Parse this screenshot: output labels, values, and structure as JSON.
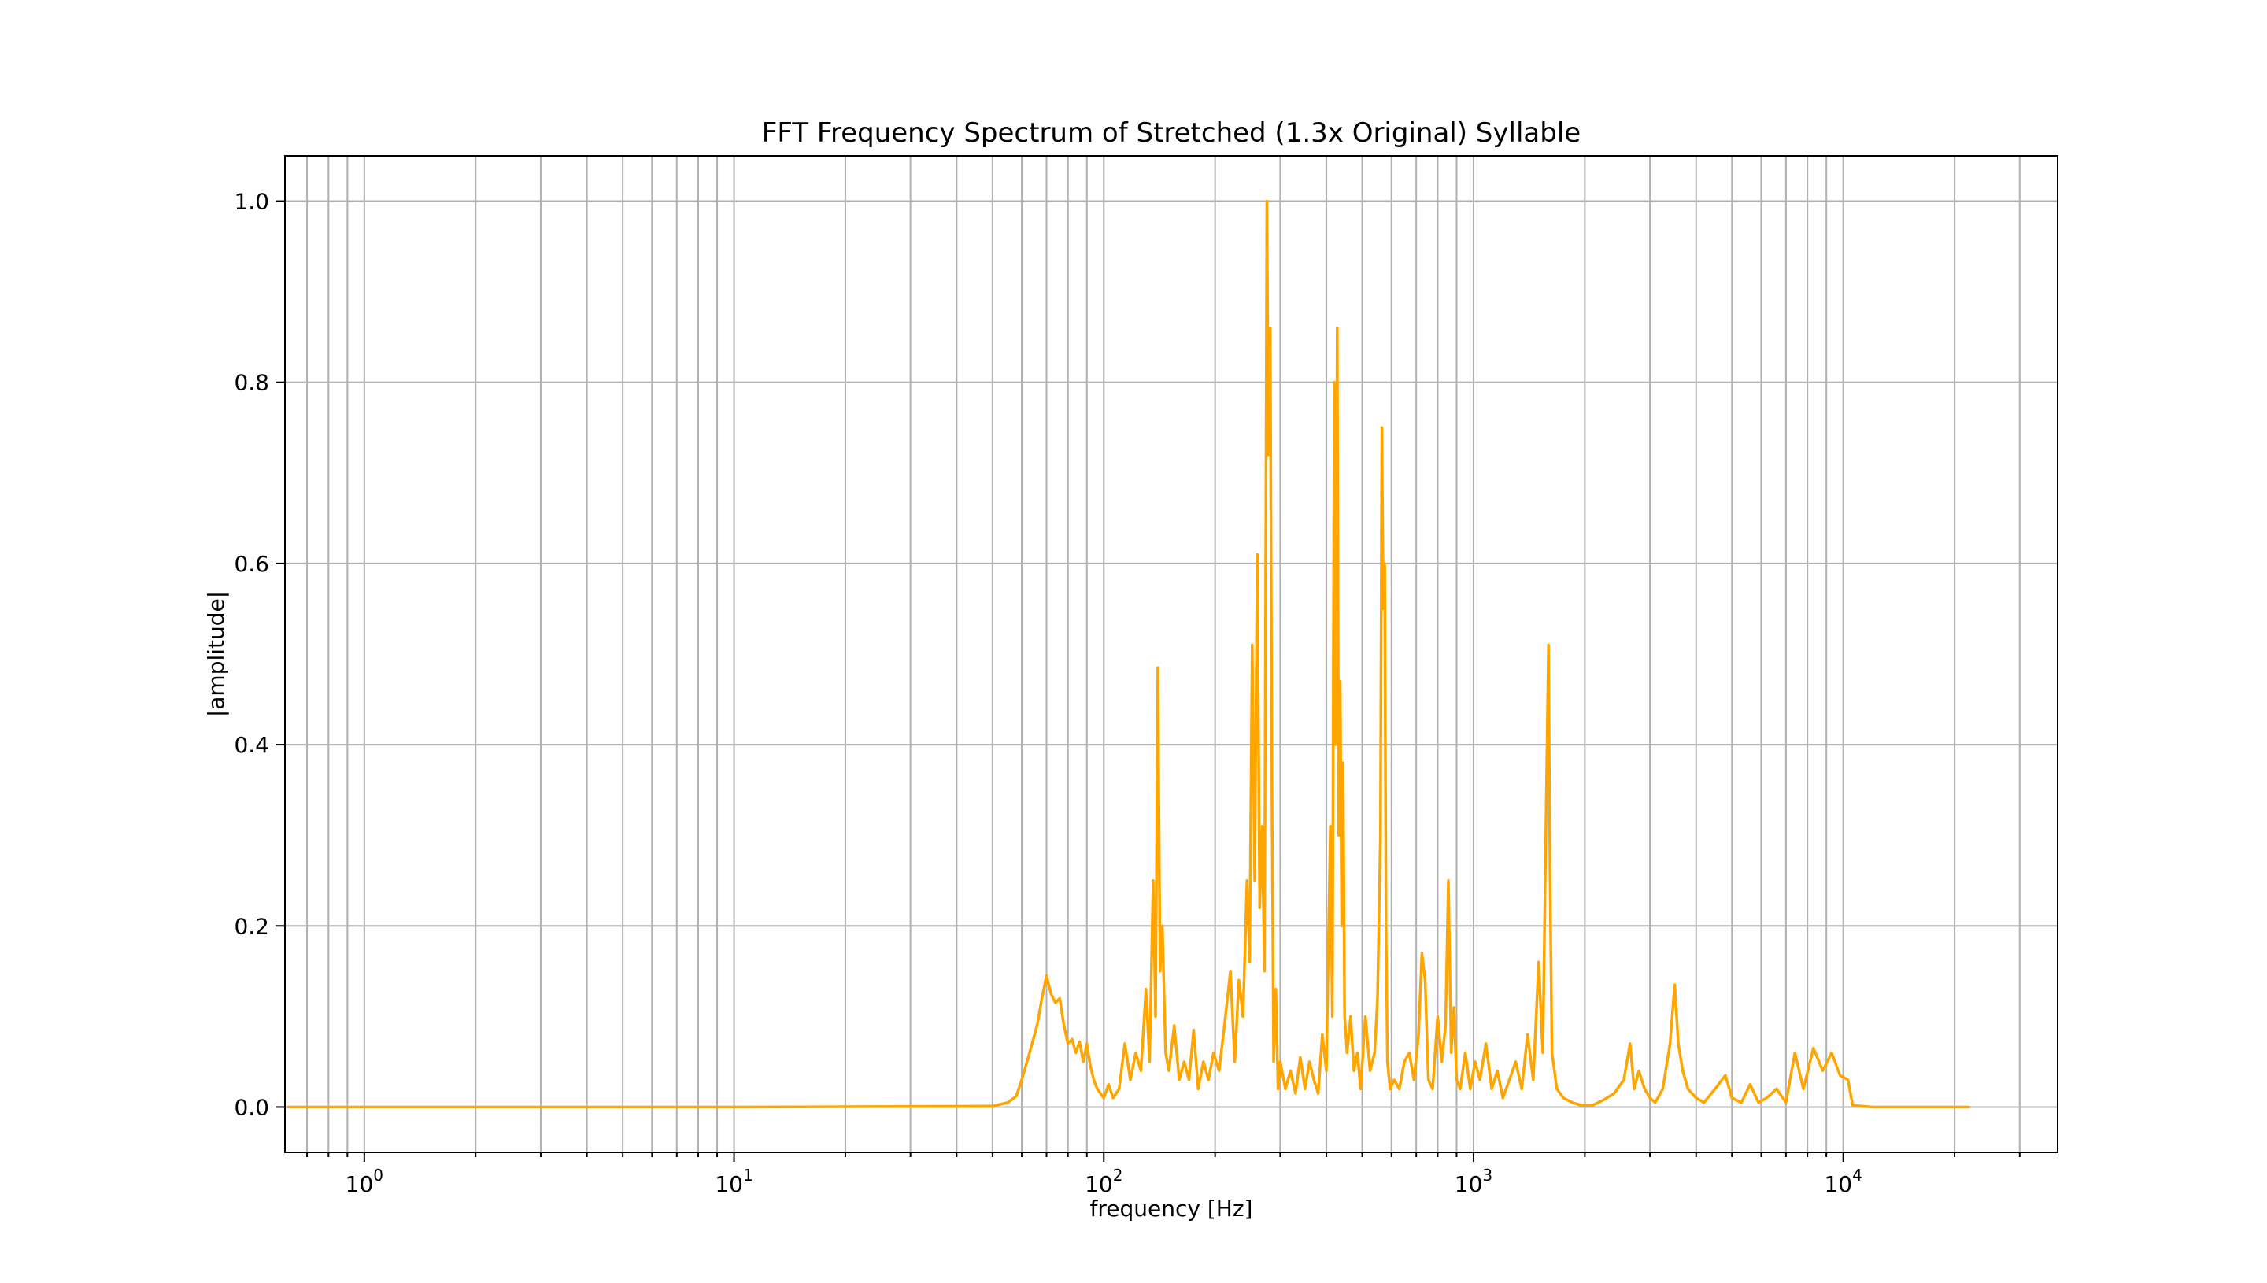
{
  "chart_data": {
    "type": "line",
    "title": "FFT Frequency Spectrum of Stretched (1.3x Original) Syllable",
    "xlabel": "frequency [Hz]",
    "ylabel": "|amplitude|",
    "xscale": "log",
    "xlim": [
      0.61,
      38000
    ],
    "ylim": [
      -0.05,
      1.05
    ],
    "grid": true,
    "grid_minor_x": true,
    "line_color": "#FFA500",
    "x_ticks": [
      {
        "base": "10",
        "exp": "0",
        "value": 1
      },
      {
        "base": "10",
        "exp": "1",
        "value": 10
      },
      {
        "base": "10",
        "exp": "2",
        "value": 100
      },
      {
        "base": "10",
        "exp": "3",
        "value": 1000
      },
      {
        "base": "10",
        "exp": "4",
        "value": 10000
      }
    ],
    "y_ticks": [
      "0.0",
      "0.2",
      "0.4",
      "0.6",
      "0.8",
      "1.0"
    ],
    "series": [
      {
        "points": [
          [
            0.62,
            0.0
          ],
          [
            10,
            0.0
          ],
          [
            50,
            0.001
          ],
          [
            55,
            0.005
          ],
          [
            58,
            0.012
          ],
          [
            60,
            0.03
          ],
          [
            63,
            0.06
          ],
          [
            66,
            0.09
          ],
          [
            68,
            0.12
          ],
          [
            70,
            0.145
          ],
          [
            72,
            0.125
          ],
          [
            74,
            0.115
          ],
          [
            76,
            0.12
          ],
          [
            78,
            0.09
          ],
          [
            80,
            0.07
          ],
          [
            82,
            0.075
          ],
          [
            84,
            0.06
          ],
          [
            86,
            0.072
          ],
          [
            88,
            0.05
          ],
          [
            90,
            0.07
          ],
          [
            92,
            0.045
          ],
          [
            94,
            0.03
          ],
          [
            96,
            0.02
          ],
          [
            98,
            0.015
          ],
          [
            100,
            0.01
          ],
          [
            103,
            0.025
          ],
          [
            106,
            0.01
          ],
          [
            110,
            0.02
          ],
          [
            114,
            0.07
          ],
          [
            118,
            0.03
          ],
          [
            122,
            0.06
          ],
          [
            126,
            0.04
          ],
          [
            130,
            0.13
          ],
          [
            133,
            0.05
          ],
          [
            136,
            0.25
          ],
          [
            138,
            0.1
          ],
          [
            140,
            0.485
          ],
          [
            142,
            0.15
          ],
          [
            144,
            0.2
          ],
          [
            147,
            0.06
          ],
          [
            150,
            0.04
          ],
          [
            155,
            0.09
          ],
          [
            160,
            0.03
          ],
          [
            165,
            0.05
          ],
          [
            170,
            0.03
          ],
          [
            175,
            0.085
          ],
          [
            180,
            0.02
          ],
          [
            186,
            0.05
          ],
          [
            192,
            0.03
          ],
          [
            198,
            0.06
          ],
          [
            205,
            0.04
          ],
          [
            212,
            0.09
          ],
          [
            220,
            0.15
          ],
          [
            226,
            0.05
          ],
          [
            232,
            0.14
          ],
          [
            238,
            0.1
          ],
          [
            244,
            0.25
          ],
          [
            248,
            0.16
          ],
          [
            252,
            0.51
          ],
          [
            256,
            0.25
          ],
          [
            260,
            0.61
          ],
          [
            264,
            0.22
          ],
          [
            268,
            0.31
          ],
          [
            272,
            0.15
          ],
          [
            276,
            1.0
          ],
          [
            279,
            0.72
          ],
          [
            282,
            0.86
          ],
          [
            285,
            0.35
          ],
          [
            288,
            0.05
          ],
          [
            292,
            0.13
          ],
          [
            296,
            0.02
          ],
          [
            300,
            0.05
          ],
          [
            310,
            0.02
          ],
          [
            320,
            0.04
          ],
          [
            330,
            0.015
          ],
          [
            340,
            0.055
          ],
          [
            350,
            0.02
          ],
          [
            360,
            0.05
          ],
          [
            370,
            0.03
          ],
          [
            380,
            0.015
          ],
          [
            390,
            0.08
          ],
          [
            400,
            0.04
          ],
          [
            410,
            0.31
          ],
          [
            415,
            0.1
          ],
          [
            420,
            0.8
          ],
          [
            424,
            0.4
          ],
          [
            428,
            0.86
          ],
          [
            432,
            0.3
          ],
          [
            436,
            0.47
          ],
          [
            440,
            0.2
          ],
          [
            444,
            0.38
          ],
          [
            448,
            0.1
          ],
          [
            455,
            0.06
          ],
          [
            465,
            0.1
          ],
          [
            475,
            0.04
          ],
          [
            485,
            0.06
          ],
          [
            495,
            0.02
          ],
          [
            510,
            0.1
          ],
          [
            525,
            0.04
          ],
          [
            540,
            0.06
          ],
          [
            550,
            0.12
          ],
          [
            560,
            0.3
          ],
          [
            565,
            0.75
          ],
          [
            570,
            0.55
          ],
          [
            575,
            0.6
          ],
          [
            580,
            0.2
          ],
          [
            585,
            0.05
          ],
          [
            595,
            0.02
          ],
          [
            610,
            0.03
          ],
          [
            630,
            0.02
          ],
          [
            650,
            0.05
          ],
          [
            670,
            0.06
          ],
          [
            690,
            0.03
          ],
          [
            710,
            0.08
          ],
          [
            725,
            0.17
          ],
          [
            740,
            0.14
          ],
          [
            755,
            0.03
          ],
          [
            775,
            0.02
          ],
          [
            800,
            0.1
          ],
          [
            820,
            0.05
          ],
          [
            840,
            0.09
          ],
          [
            855,
            0.25
          ],
          [
            870,
            0.06
          ],
          [
            885,
            0.11
          ],
          [
            900,
            0.03
          ],
          [
            920,
            0.02
          ],
          [
            950,
            0.06
          ],
          [
            980,
            0.02
          ],
          [
            1010,
            0.05
          ],
          [
            1040,
            0.03
          ],
          [
            1080,
            0.07
          ],
          [
            1120,
            0.02
          ],
          [
            1160,
            0.04
          ],
          [
            1200,
            0.01
          ],
          [
            1250,
            0.03
          ],
          [
            1300,
            0.05
          ],
          [
            1350,
            0.02
          ],
          [
            1400,
            0.08
          ],
          [
            1450,
            0.03
          ],
          [
            1500,
            0.16
          ],
          [
            1540,
            0.06
          ],
          [
            1575,
            0.35
          ],
          [
            1595,
            0.51
          ],
          [
            1610,
            0.26
          ],
          [
            1630,
            0.06
          ],
          [
            1680,
            0.02
          ],
          [
            1750,
            0.01
          ],
          [
            1850,
            0.005
          ],
          [
            1950,
            0.002
          ],
          [
            2100,
            0.002
          ],
          [
            2250,
            0.008
          ],
          [
            2400,
            0.015
          ],
          [
            2550,
            0.03
          ],
          [
            2650,
            0.07
          ],
          [
            2720,
            0.02
          ],
          [
            2800,
            0.04
          ],
          [
            2900,
            0.02
          ],
          [
            3000,
            0.01
          ],
          [
            3100,
            0.005
          ],
          [
            3250,
            0.02
          ],
          [
            3400,
            0.07
          ],
          [
            3500,
            0.135
          ],
          [
            3580,
            0.07
          ],
          [
            3680,
            0.04
          ],
          [
            3800,
            0.02
          ],
          [
            4000,
            0.01
          ],
          [
            4200,
            0.005
          ],
          [
            4500,
            0.02
          ],
          [
            4800,
            0.035
          ],
          [
            5000,
            0.01
          ],
          [
            5300,
            0.005
          ],
          [
            5600,
            0.025
          ],
          [
            5900,
            0.005
          ],
          [
            6200,
            0.01
          ],
          [
            6600,
            0.02
          ],
          [
            7000,
            0.005
          ],
          [
            7400,
            0.06
          ],
          [
            7800,
            0.02
          ],
          [
            8300,
            0.065
          ],
          [
            8800,
            0.04
          ],
          [
            9300,
            0.06
          ],
          [
            9800,
            0.035
          ],
          [
            10300,
            0.03
          ],
          [
            10600,
            0.002
          ],
          [
            12000,
            0.0
          ],
          [
            22000,
            0.0
          ]
        ]
      }
    ]
  }
}
